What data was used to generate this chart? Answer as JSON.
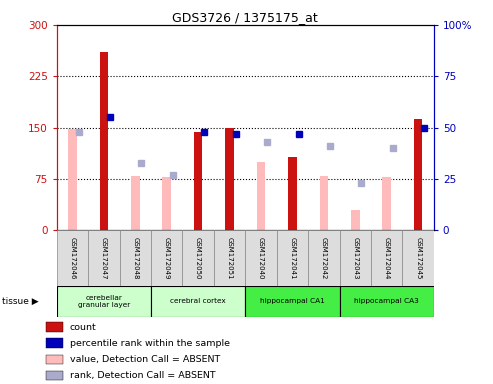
{
  "title": "GDS3726 / 1375175_at",
  "samples": [
    "GSM172046",
    "GSM172047",
    "GSM172048",
    "GSM172049",
    "GSM172050",
    "GSM172051",
    "GSM172040",
    "GSM172041",
    "GSM172042",
    "GSM172043",
    "GSM172044",
    "GSM172045"
  ],
  "count_values": [
    null,
    260,
    null,
    null,
    143,
    150,
    null,
    107,
    null,
    null,
    null,
    163
  ],
  "absent_value_bars": [
    148,
    null,
    80,
    78,
    null,
    null,
    100,
    null,
    80,
    30,
    78,
    null
  ],
  "percentile_rank_pct": [
    null,
    55,
    null,
    null,
    48,
    47,
    null,
    47,
    null,
    null,
    null,
    50
  ],
  "absent_rank_pct": [
    48,
    null,
    33,
    27,
    null,
    null,
    43,
    null,
    41,
    23,
    40,
    null
  ],
  "ylim_left": [
    0,
    300
  ],
  "ylim_right": [
    0,
    100
  ],
  "yticks_left": [
    0,
    75,
    150,
    225,
    300
  ],
  "ytick_labels_left": [
    "0",
    "75",
    "150",
    "225",
    "300"
  ],
  "yticks_right": [
    0,
    25,
    50,
    75,
    100
  ],
  "ytick_labels_right": [
    "0",
    "25",
    "50",
    "75",
    "100%"
  ],
  "count_color": "#cc1111",
  "absent_value_color": "#ffbbbb",
  "percentile_color": "#0000bb",
  "absent_rank_color": "#aaaacc",
  "tissue_groups": [
    {
      "label": "cerebellar\ngranular layer",
      "start": 0,
      "end": 3,
      "color": "#ccffcc"
    },
    {
      "label": "cerebral cortex",
      "start": 3,
      "end": 6,
      "color": "#ccffcc"
    },
    {
      "label": "hippocampal CA1",
      "start": 6,
      "end": 9,
      "color": "#44ee44"
    },
    {
      "label": "hippocampal CA3",
      "start": 9,
      "end": 12,
      "color": "#44ee44"
    }
  ]
}
